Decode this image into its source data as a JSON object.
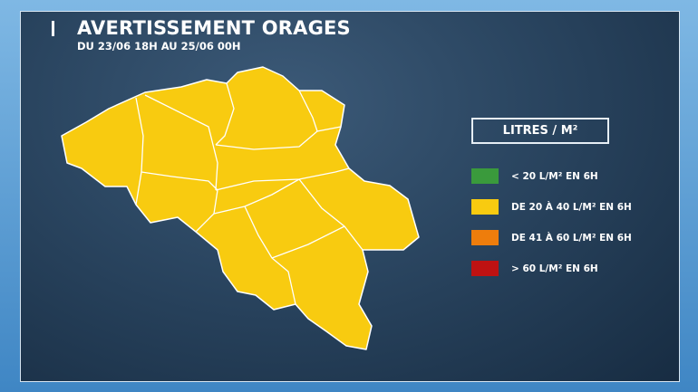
{
  "header": {
    "title": "AVERTISSEMENT ORAGES",
    "subtitle": "DU 23/06 18H AU 25/06 00H"
  },
  "map": {
    "region_color": "#f8cb10",
    "border_color": "#ffffff",
    "all_regions_level": "DE 20 À 40 L/M² EN 6H"
  },
  "legend": {
    "title": "LITRES / M²",
    "items": [
      {
        "label": "< 20 L/M² EN 6H",
        "color": "#3a9a3c"
      },
      {
        "label": "DE 20 À 40 L/M² EN 6H",
        "color": "#f8cb10"
      },
      {
        "label": "DE 41 À 60 L/M² EN 6H",
        "color": "#ee7d0c"
      },
      {
        "label": "> 60 L/M² EN 6H",
        "color": "#bf1212"
      }
    ]
  }
}
